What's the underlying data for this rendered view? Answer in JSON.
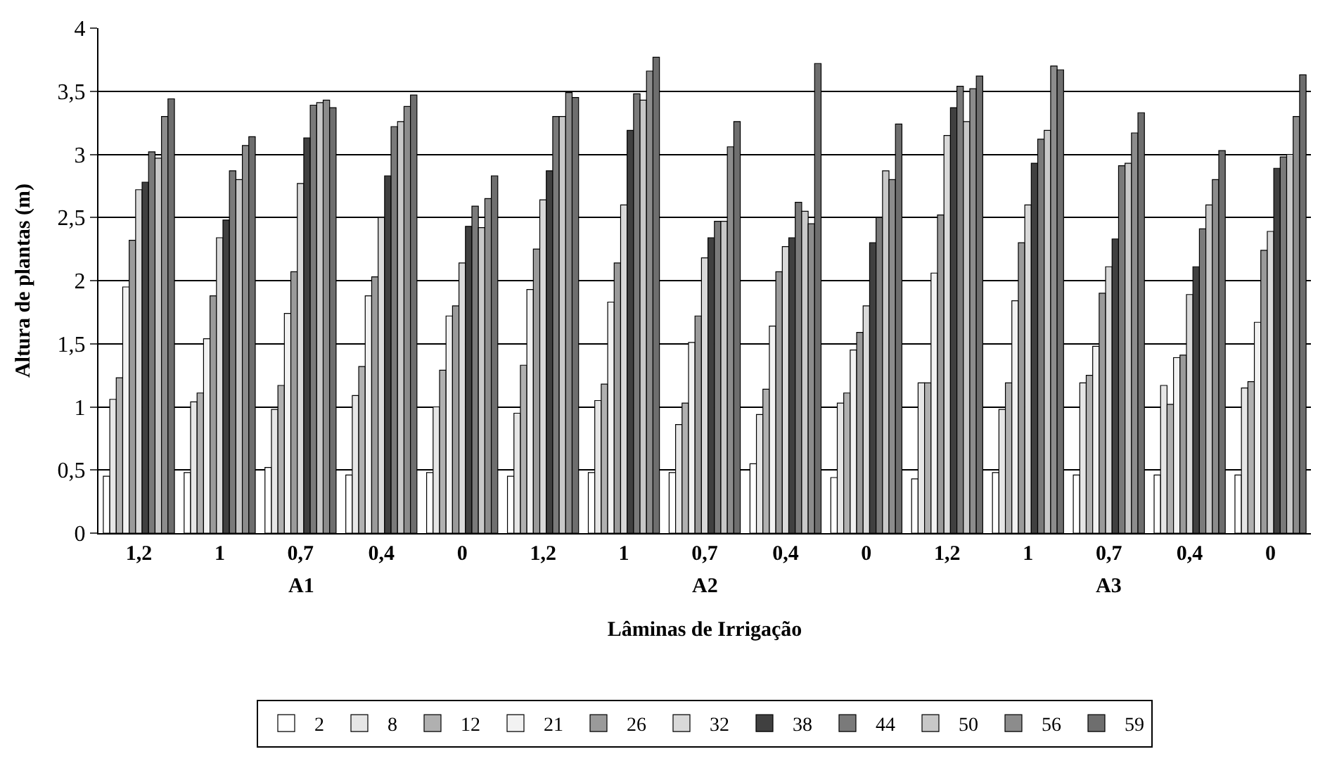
{
  "chart_data": {
    "type": "bar",
    "xlabel": "Lâminas de Irrigação",
    "ylabel": "Altura de plantas (m)",
    "categories": [
      "1,2",
      "1",
      "0,7",
      "0,4",
      "0",
      "1,2",
      "1",
      "0,7",
      "0,4",
      "0",
      "1,2",
      "1",
      "0,7",
      "0,4",
      "0"
    ],
    "annotations": [
      "A1",
      "A2",
      "A3"
    ],
    "ylim": [
      0,
      4
    ],
    "yticks": [
      0,
      {
        "value": 0.5,
        "label": "0,5"
      },
      1,
      {
        "value": 1.5,
        "label": "1,5"
      },
      2,
      {
        "value": 2.5,
        "label": "2,5"
      },
      3,
      {
        "value": 3.5,
        "label": "3,5"
      },
      4
    ],
    "grid": "y",
    "legend": "bottom",
    "series": [
      {
        "name": "2",
        "color": "#ffffff",
        "values": [
          0.45,
          0.48,
          0.52,
          0.46,
          0.48,
          0.45,
          0.48,
          0.48,
          0.55,
          0.44,
          0.43,
          0.48,
          0.46,
          0.46,
          0.46
        ]
      },
      {
        "name": "8",
        "color": "#e6e6e6",
        "values": [
          1.06,
          1.04,
          0.98,
          1.09,
          1.0,
          0.95,
          1.05,
          0.86,
          0.94,
          1.03,
          1.19,
          0.98,
          1.19,
          1.17,
          1.15
        ]
      },
      {
        "name": "12",
        "color": "#b0b0b0",
        "values": [
          1.23,
          1.11,
          1.17,
          1.32,
          1.29,
          1.33,
          1.18,
          1.03,
          1.14,
          1.11,
          1.19,
          1.19,
          1.25,
          1.02,
          1.2
        ]
      },
      {
        "name": "21",
        "color": "#f2f2f2",
        "values": [
          1.95,
          1.54,
          1.74,
          1.88,
          1.72,
          1.93,
          1.83,
          1.51,
          1.64,
          1.45,
          2.06,
          1.84,
          1.48,
          1.39,
          1.67
        ]
      },
      {
        "name": "26",
        "color": "#9a9a9a",
        "values": [
          2.32,
          1.88,
          2.07,
          2.03,
          1.8,
          2.25,
          2.14,
          1.72,
          2.07,
          1.59,
          2.52,
          2.3,
          1.9,
          1.41,
          2.24
        ]
      },
      {
        "name": "32",
        "color": "#d9d9d9",
        "values": [
          2.72,
          2.34,
          2.77,
          2.5,
          2.14,
          2.64,
          2.6,
          2.18,
          2.27,
          1.8,
          3.15,
          2.6,
          2.11,
          1.89,
          2.39
        ]
      },
      {
        "name": "38",
        "color": "#404040",
        "values": [
          2.78,
          2.48,
          3.13,
          2.83,
          2.43,
          2.87,
          3.19,
          2.34,
          2.34,
          2.3,
          3.37,
          2.93,
          2.33,
          2.11,
          2.89
        ]
      },
      {
        "name": "44",
        "color": "#7a7a7a",
        "values": [
          3.02,
          2.87,
          3.39,
          3.22,
          2.59,
          3.3,
          3.48,
          2.47,
          2.62,
          2.5,
          3.54,
          3.12,
          2.91,
          2.41,
          2.98
        ]
      },
      {
        "name": "50",
        "color": "#c8c8c8",
        "values": [
          2.97,
          2.8,
          3.41,
          3.26,
          2.42,
          3.3,
          3.43,
          2.47,
          2.55,
          2.87,
          3.26,
          3.19,
          2.93,
          2.6,
          3.0
        ]
      },
      {
        "name": "56",
        "color": "#8c8c8c",
        "values": [
          3.3,
          3.07,
          3.43,
          3.38,
          2.65,
          3.49,
          3.66,
          3.06,
          2.45,
          2.8,
          3.52,
          3.7,
          3.17,
          2.8,
          3.3
        ]
      },
      {
        "name": "59",
        "color": "#6e6e6e",
        "values": [
          3.44,
          3.14,
          3.37,
          3.47,
          2.83,
          3.45,
          3.77,
          3.26,
          3.72,
          3.24,
          3.62,
          3.67,
          3.33,
          3.03,
          3.63
        ]
      }
    ]
  }
}
